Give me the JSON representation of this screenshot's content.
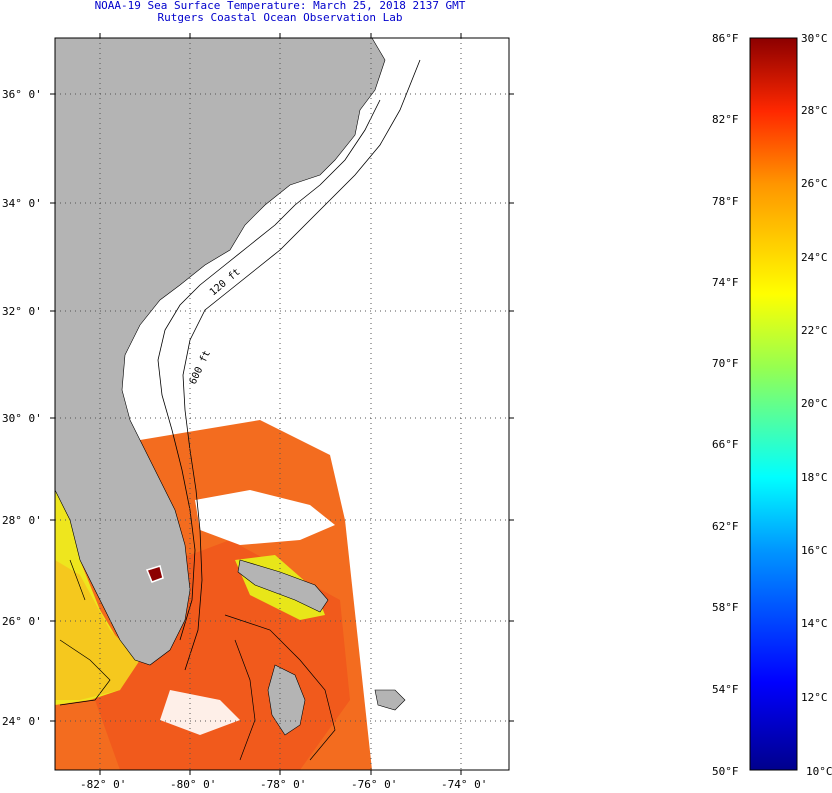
{
  "title": {
    "line1": "NOAA-19 Sea Surface Temperature:  March 25, 2018 2137 GMT",
    "line2": "Rutgers Coastal Ocean Observation Lab"
  },
  "map": {
    "lat_ticks": [
      "36° 0'",
      "34° 0'",
      "32° 0'",
      "30° 0'",
      "28° 0'",
      "26° 0'",
      "24° 0'"
    ],
    "lon_ticks": [
      "-82° 0'",
      "-80° 0'",
      "-78° 0'",
      "-76° 0'",
      "-74° 0'"
    ],
    "isobath_labels": [
      "120 ft",
      "600 ft"
    ],
    "colors": {
      "land": "#b4b4b4",
      "warm_water": "#f46a1e",
      "mid_water": "#f0b41e",
      "cool_water": "#e6f01e",
      "gridline": "#555555"
    }
  },
  "colorbar": {
    "fahrenheit": [
      "86°F",
      "82°F",
      "78°F",
      "74°F",
      "70°F",
      "66°F",
      "62°F",
      "58°F",
      "54°F",
      "50°F"
    ],
    "celsius": [
      "30°C",
      "28°C",
      "26°C",
      "24°C",
      "22°C",
      "20°C",
      "18°C",
      "16°C",
      "14°C",
      "12°C",
      "10°C"
    ],
    "range_f": [
      50,
      86
    ],
    "range_c": [
      10,
      30
    ]
  }
}
